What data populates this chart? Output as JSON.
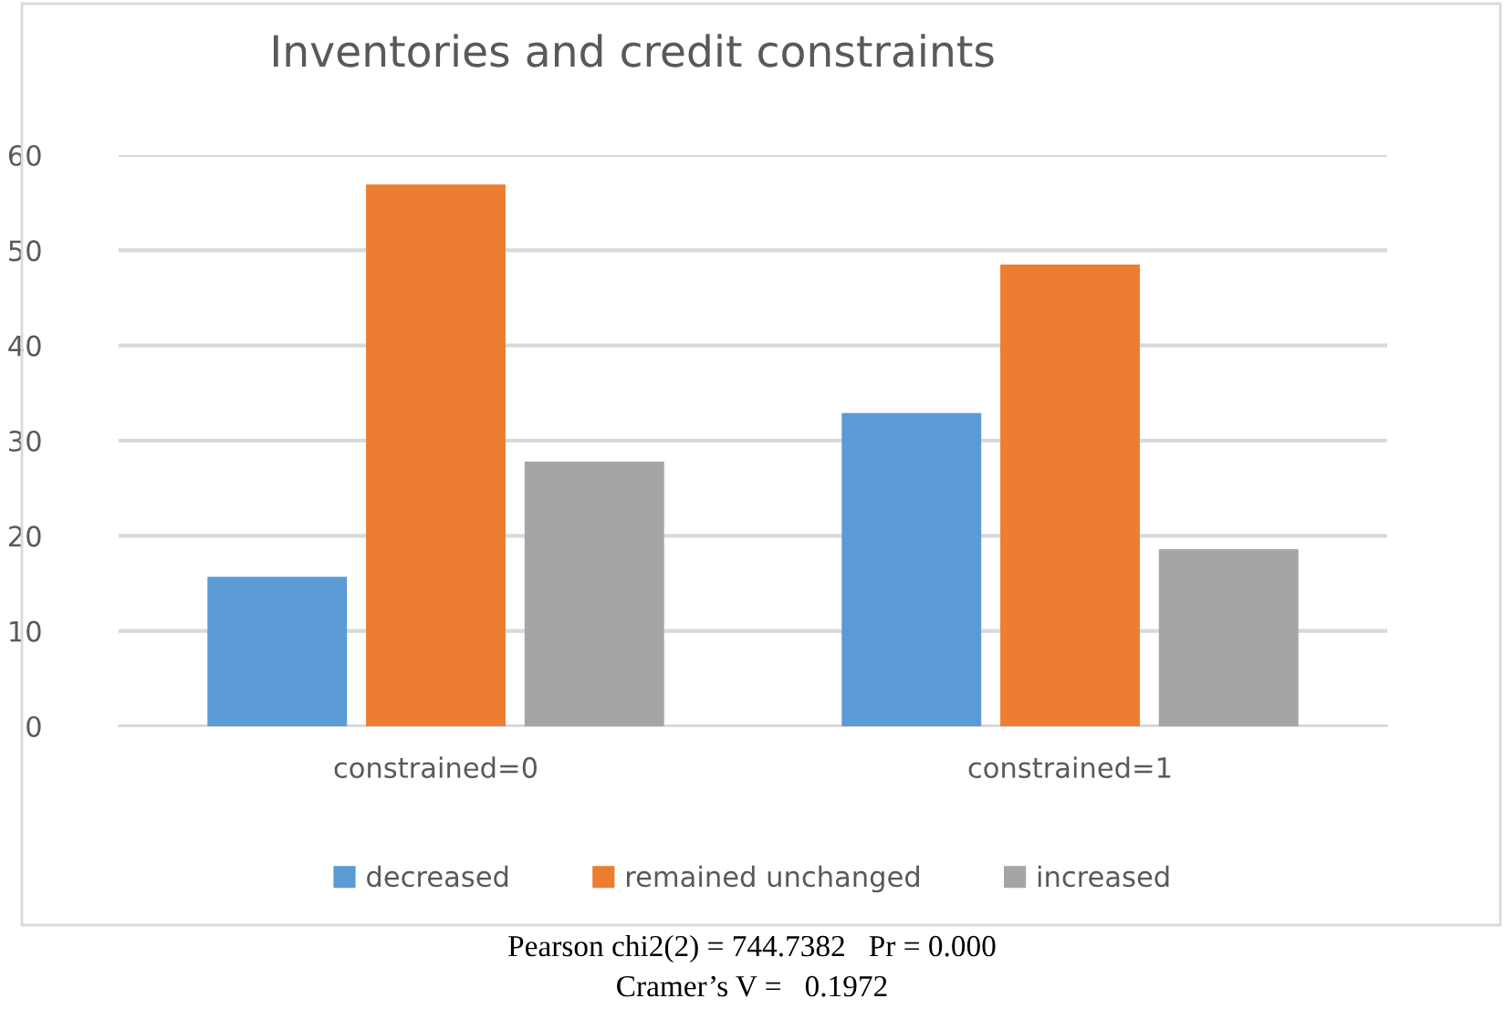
{
  "chart_data": {
    "type": "bar",
    "title": "Inventories and credit constraints",
    "categories": [
      "constrained=0",
      "constrained=1"
    ],
    "series": [
      {
        "name": "decreased",
        "color": "#5b9bd5",
        "values": [
          15.7,
          32.9
        ]
      },
      {
        "name": "remained unchanged",
        "color": "#ed7d31",
        "values": [
          56.9,
          48.5
        ]
      },
      {
        "name": "increased",
        "color": "#a5a5a5",
        "values": [
          27.8,
          18.6
        ]
      }
    ],
    "ylim": [
      0,
      60
    ],
    "yticks": [
      0,
      10,
      20,
      30,
      40,
      50,
      60
    ],
    "grid": "y",
    "legend": "bottom",
    "annotations": [
      "Pearson chi2(2) = 744.7382   Pr = 0.000",
      "Cramer’s V =   0.1972"
    ]
  }
}
